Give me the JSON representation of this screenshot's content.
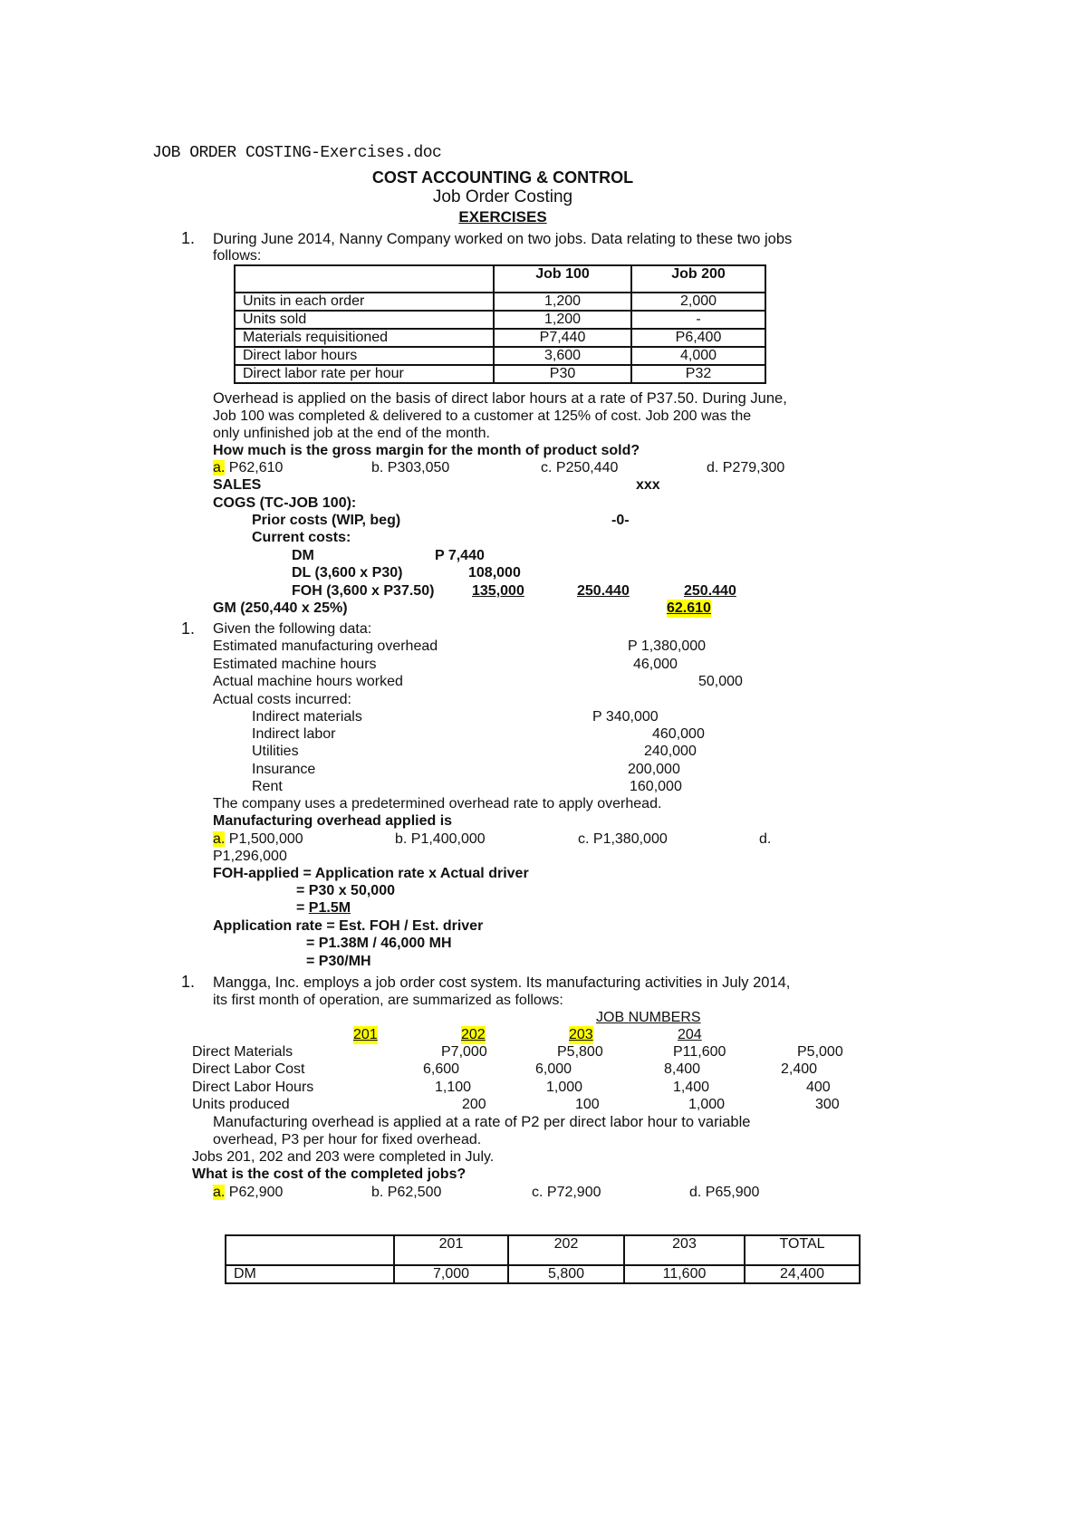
{
  "filename": "JOB ORDER COSTING-Exercises.doc",
  "heading": {
    "course": "COST ACCOUNTING & CONTROL",
    "topic": "Job Order Costing",
    "section": "EXERCISES"
  },
  "q1": {
    "number": "1.",
    "intro": [
      "During June 2014, Nanny Company worked on two jobs. Data relating to these two jobs",
      "follows:"
    ],
    "table": {
      "headers": [
        "",
        "Job 100",
        "Job 200"
      ],
      "rows": [
        [
          "Units in each order",
          "1,200",
          "2,000"
        ],
        [
          "Units sold",
          "1,200",
          "-"
        ],
        [
          "Materials requisitioned",
          "P7,440",
          "P6,400"
        ],
        [
          "Direct labor hours",
          "3,600",
          "4,000"
        ],
        [
          "Direct labor rate per hour",
          "P30",
          "P32"
        ]
      ]
    },
    "text": [
      "Overhead is applied on the basis of direct labor hours at a rate of P37.50. During June,",
      "Job 100 was completed & delivered to a customer at 125% of cost. Job 200 was the",
      "only unfinished job at the end of the month."
    ],
    "question": "How much is the gross margin for the month of product sold?",
    "options": {
      "a_letter": "a.",
      "a": "P62,610",
      "b": "b. P303,050",
      "c": "c. P250,440",
      "d": "d. P279,300"
    },
    "solution": {
      "sales": "SALES",
      "sales_val": "xxx",
      "cogs": "COGS (TC-JOB 100):",
      "prior": "Prior costs (WIP, beg)",
      "prior_val": "-0-",
      "current": "Current costs:",
      "dm": "DM",
      "dm_val": "P 7,440",
      "dl": "DL (3,600 x P30)",
      "dl_val": "108,000",
      "foh": "FOH (3,600 x P37.50)",
      "foh_val": "135,000",
      "sub1": "250.440",
      "sub2": "250.440",
      "gm": "GM (250,440 x 25%)",
      "gm_val": "62.610"
    }
  },
  "q2": {
    "number": "1.",
    "intro": "Given the following data:",
    "items": [
      {
        "label": "Estimated manufacturing overhead",
        "value": "P 1,380,000"
      },
      {
        "label": "Estimated machine hours",
        "value": "46,000"
      },
      {
        "label": "Actual machine hours worked",
        "value": "50,000"
      }
    ],
    "actual_label": "Actual costs incurred:",
    "actual": [
      {
        "label": "Indirect materials",
        "value": "P 340,000"
      },
      {
        "label": "Indirect labor",
        "value": "460,000"
      },
      {
        "label": "Utilities",
        "value": "240,000"
      },
      {
        "label": "Insurance",
        "value": "200,000"
      },
      {
        "label": "Rent",
        "value": "160,000"
      }
    ],
    "text": "The company uses a predetermined overhead rate to apply overhead.",
    "question": "Manufacturing overhead applied is",
    "options": {
      "a_letter": "a.",
      "a": "P1,500,000",
      "b": "b. P1,400,000",
      "c": "c. P1,380,000",
      "d": "d.",
      "d_val": "P1,296,000"
    },
    "solution": [
      "FOH-applied = Application rate x Actual driver",
      "= P30 x 50,000",
      "= ",
      "P1.5M",
      "Application rate = Est. FOH / Est. driver",
      "= P1.38M / 46,000 MH",
      "= P30/MH"
    ]
  },
  "q3": {
    "number": "1.",
    "intro": [
      "Mangga, Inc. employs a job order cost system. Its manufacturing activities in July 2014,",
      "its first month of operation, are summarized as follows:"
    ],
    "job_numbers_label": "JOB NUMBERS",
    "jobs": [
      "201",
      "202",
      "203",
      "204"
    ],
    "rows": [
      {
        "label": "Direct Materials",
        "values": [
          "P7,000",
          "P5,800",
          "P11,600",
          "P5,000"
        ]
      },
      {
        "label": "Direct Labor Cost",
        "values": [
          "6,600",
          "6,000",
          "8,400",
          "2,400"
        ]
      },
      {
        "label": "Direct Labor Hours",
        "values": [
          "1,100",
          "1,000",
          "1,400",
          "400"
        ]
      },
      {
        "label": "Units produced",
        "values": [
          "200",
          "100",
          "1,000",
          "300"
        ]
      }
    ],
    "text": [
      "Manufacturing overhead is applied at a rate of P2 per direct labor hour to variable",
      "overhead, P3 per hour for fixed overhead.",
      "Jobs 201, 202 and 203 were completed in July."
    ],
    "question": "What is the cost of the completed jobs?",
    "options": {
      "a_letter": "a.",
      "a": "P62,900",
      "b": "b. P62,500",
      "c": "c. P72,900",
      "d": "d. P65,900"
    },
    "table": {
      "headers": [
        "",
        "201",
        "202",
        "203",
        "TOTAL"
      ],
      "rows": [
        [
          "DM",
          "7,000",
          "5,800",
          "11,600",
          "24,400"
        ]
      ]
    }
  },
  "colors": {
    "highlight": "#ffff00",
    "text": "#111111"
  }
}
